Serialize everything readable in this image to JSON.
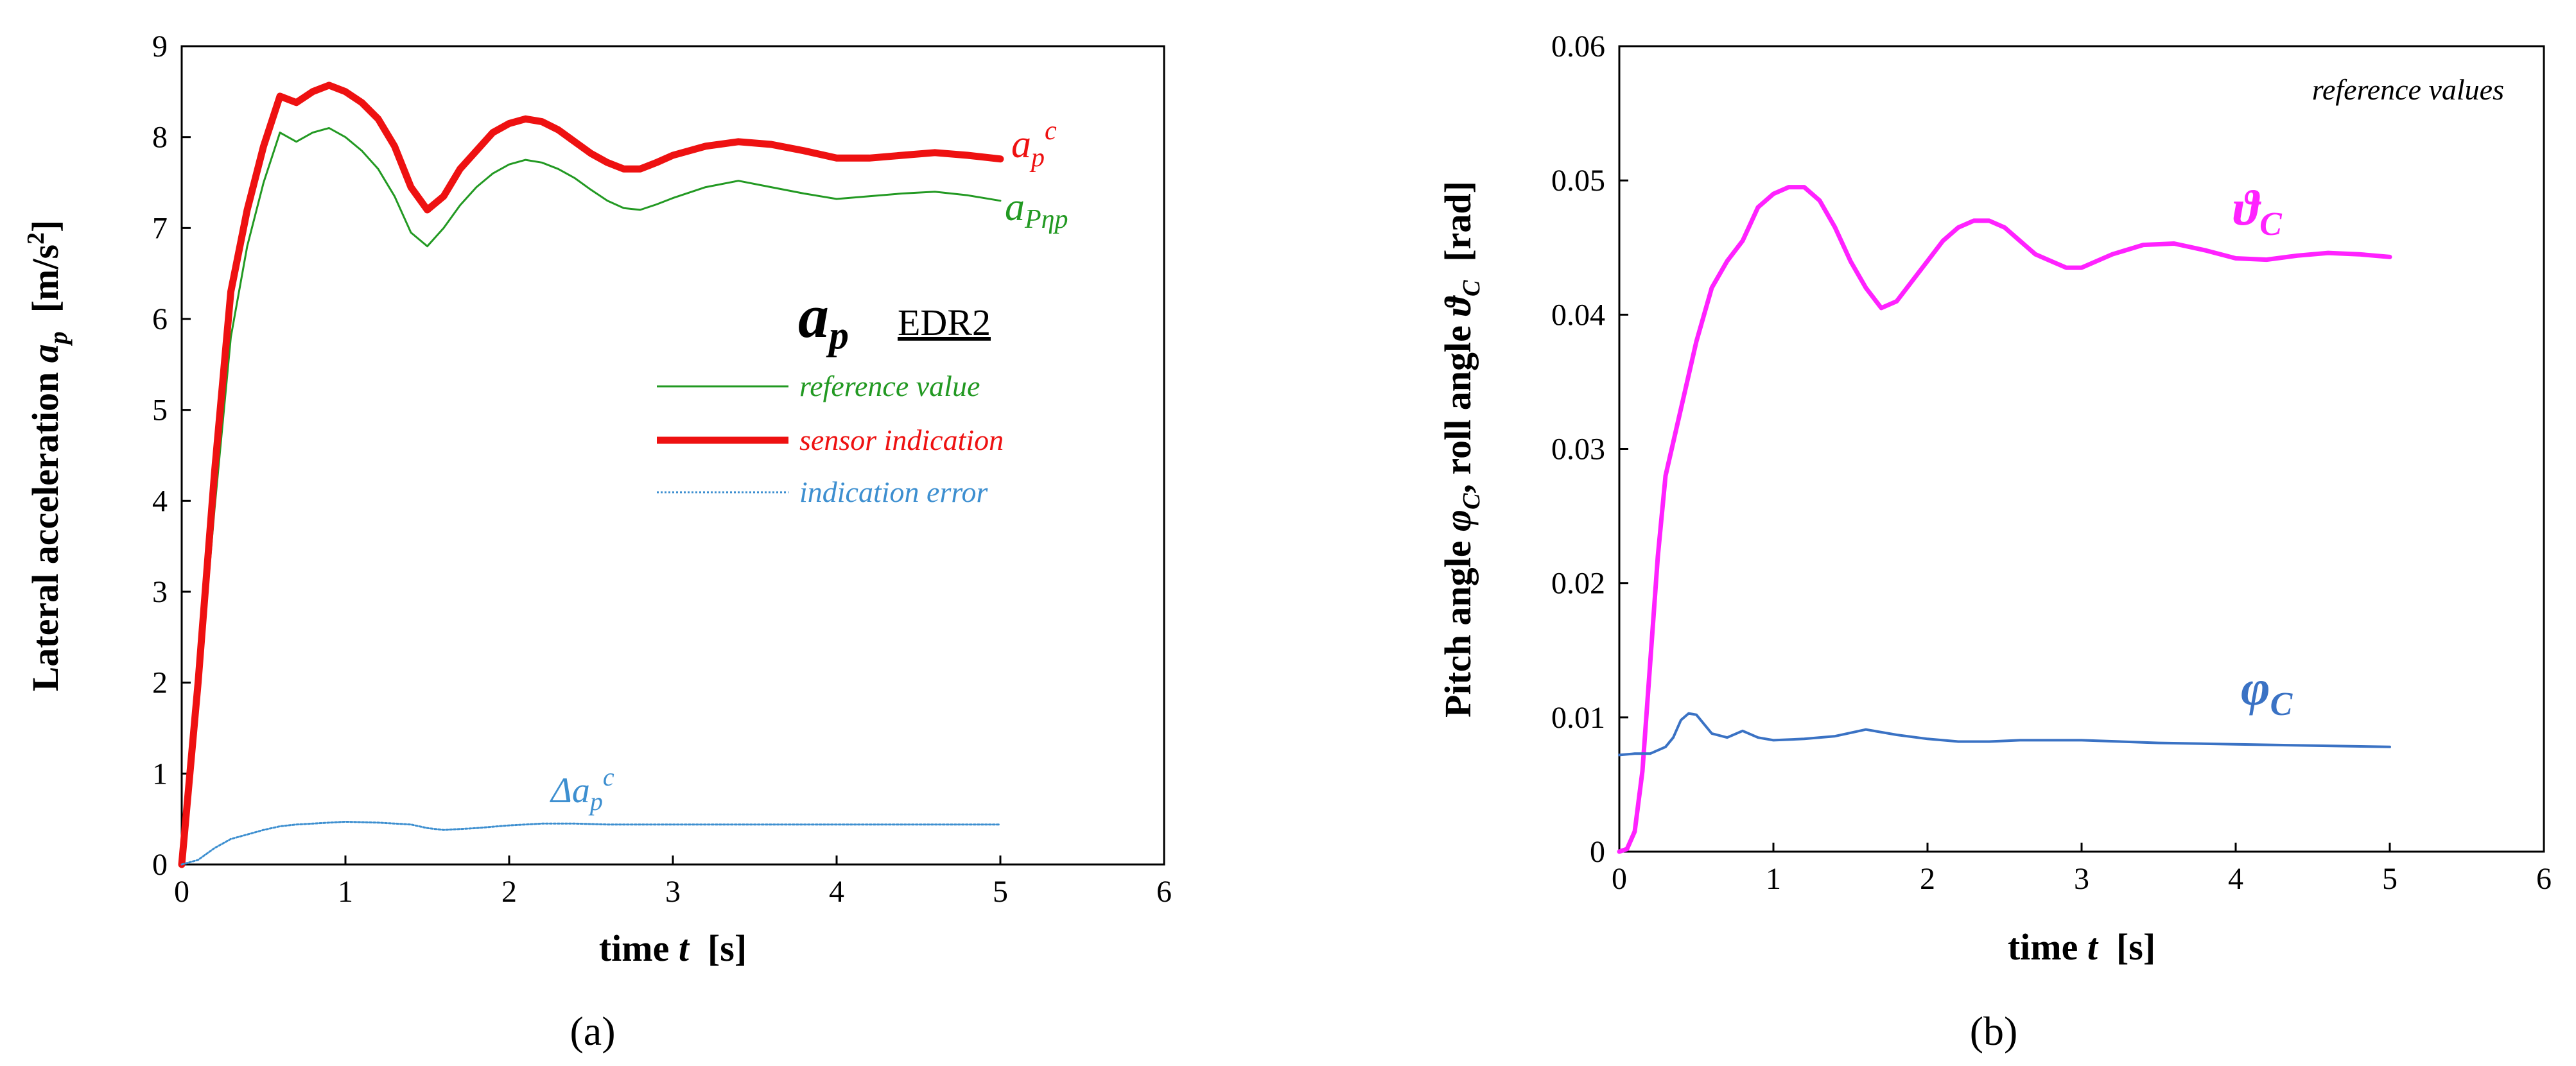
{
  "chart_data": [
    {
      "type": "line",
      "panel_label": "(a)",
      "xlim": [
        0,
        6
      ],
      "ylim": [
        0,
        9
      ],
      "x_ticks": [
        0,
        1,
        2,
        3,
        4,
        5,
        6
      ],
      "y_ticks": [
        0,
        1,
        2,
        3,
        4,
        5,
        6,
        7,
        8,
        9
      ],
      "xlabel_main": "time ",
      "xlabel_var": "t",
      "xlabel_unit": "  [s]",
      "ylabel_main": "Lateral acceleration ",
      "ylabel_var": "a",
      "ylabel_sub": "p",
      "ylabel_unit_pre": "  [m/s",
      "ylabel_unit_sup": "2",
      "ylabel_unit_post": "]",
      "legend_title_var": "a",
      "legend_title_sub": "p",
      "legend_title_code": "EDR2",
      "series": [
        {
          "name": "reference value",
          "color": "#229922",
          "stroke": "thin",
          "curve_label_main": "a",
          "curve_label_sub": "Pηp",
          "x": [
            0,
            0.1,
            0.2,
            0.3,
            0.4,
            0.5,
            0.6,
            0.7,
            0.8,
            0.9,
            1.0,
            1.1,
            1.2,
            1.3,
            1.4,
            1.5,
            1.6,
            1.7,
            1.8,
            1.9,
            2.0,
            2.1,
            2.2,
            2.3,
            2.4,
            2.5,
            2.6,
            2.7,
            2.8,
            2.9,
            3.0,
            3.2,
            3.4,
            3.6,
            3.8,
            4.0,
            4.2,
            4.4,
            4.6,
            4.8,
            5.0
          ],
          "y": [
            0,
            1.8,
            3.9,
            5.8,
            6.8,
            7.5,
            8.05,
            7.95,
            8.05,
            8.1,
            8.0,
            7.85,
            7.65,
            7.35,
            6.95,
            6.8,
            7.0,
            7.25,
            7.45,
            7.6,
            7.7,
            7.75,
            7.72,
            7.65,
            7.55,
            7.42,
            7.3,
            7.22,
            7.2,
            7.26,
            7.33,
            7.45,
            7.52,
            7.45,
            7.38,
            7.32,
            7.35,
            7.38,
            7.4,
            7.36,
            7.3
          ]
        },
        {
          "name": "sensor indication",
          "color": "#ee1111",
          "stroke": "thick",
          "curve_label_main": "a",
          "curve_label_sub": "p",
          "curve_label_sup": "c",
          "x": [
            0,
            0.1,
            0.2,
            0.3,
            0.4,
            0.5,
            0.6,
            0.7,
            0.8,
            0.9,
            1.0,
            1.1,
            1.2,
            1.3,
            1.4,
            1.5,
            1.6,
            1.7,
            1.8,
            1.9,
            2.0,
            2.1,
            2.2,
            2.3,
            2.4,
            2.5,
            2.6,
            2.7,
            2.8,
            2.9,
            3.0,
            3.2,
            3.4,
            3.6,
            3.8,
            4.0,
            4.2,
            4.4,
            4.6,
            4.8,
            5.0
          ],
          "y": [
            0,
            2.0,
            4.3,
            6.3,
            7.2,
            7.9,
            8.45,
            8.38,
            8.5,
            8.57,
            8.5,
            8.38,
            8.2,
            7.9,
            7.45,
            7.2,
            7.35,
            7.65,
            7.85,
            8.05,
            8.15,
            8.2,
            8.17,
            8.08,
            7.95,
            7.82,
            7.72,
            7.65,
            7.65,
            7.72,
            7.8,
            7.9,
            7.95,
            7.92,
            7.85,
            7.77,
            7.77,
            7.8,
            7.83,
            7.8,
            7.76
          ]
        },
        {
          "name": "indication error",
          "color": "#3d8fd0",
          "stroke": "dotted",
          "curve_label_main": "Δa",
          "curve_label_sub": "p",
          "curve_label_sup": "c",
          "x": [
            0,
            0.1,
            0.2,
            0.3,
            0.4,
            0.5,
            0.6,
            0.7,
            0.8,
            0.9,
            1.0,
            1.2,
            1.4,
            1.5,
            1.6,
            1.8,
            2.0,
            2.2,
            2.4,
            2.6,
            2.8,
            3.0,
            3.5,
            4.0,
            4.5,
            5.0
          ],
          "y": [
            0,
            0.05,
            0.18,
            0.28,
            0.33,
            0.38,
            0.42,
            0.44,
            0.45,
            0.46,
            0.47,
            0.46,
            0.44,
            0.4,
            0.38,
            0.4,
            0.43,
            0.45,
            0.45,
            0.44,
            0.44,
            0.44,
            0.44,
            0.44,
            0.44,
            0.44
          ]
        }
      ]
    },
    {
      "type": "line",
      "panel_label": "(b)",
      "xlim": [
        0,
        6
      ],
      "ylim": [
        0,
        0.06
      ],
      "x_ticks": [
        0,
        1,
        2,
        3,
        4,
        5,
        6
      ],
      "y_ticks": [
        "0",
        "0.01",
        "0.02",
        "0.03",
        "0.04",
        "0.05",
        "0.06"
      ],
      "xlabel_main": "time ",
      "xlabel_var": "t",
      "xlabel_unit": "  [s]",
      "ylabel_a": "Pitch angle ",
      "ylabel_a_var": "φ",
      "ylabel_a_sub": "C",
      "ylabel_b": ", roll angle ",
      "ylabel_b_var": "ϑ",
      "ylabel_b_sub": "C",
      "ylabel_unit": "  [rad]",
      "annotation": "reference values",
      "series": [
        {
          "color": "#ff22ff",
          "curve_label_main": "ϑ",
          "curve_label_sub": "C",
          "x": [
            0,
            0.05,
            0.1,
            0.15,
            0.2,
            0.25,
            0.3,
            0.4,
            0.5,
            0.6,
            0.7,
            0.8,
            0.9,
            1.0,
            1.1,
            1.2,
            1.3,
            1.4,
            1.5,
            1.6,
            1.7,
            1.8,
            1.9,
            2.0,
            2.1,
            2.2,
            2.3,
            2.4,
            2.5,
            2.6,
            2.7,
            2.8,
            2.9,
            3.0,
            3.2,
            3.4,
            3.6,
            3.8,
            4.0,
            4.2,
            4.4,
            4.6,
            4.8,
            5.0
          ],
          "y": [
            0,
            0.0002,
            0.0015,
            0.006,
            0.014,
            0.022,
            0.028,
            0.033,
            0.038,
            0.042,
            0.044,
            0.0455,
            0.048,
            0.049,
            0.0495,
            0.0495,
            0.0485,
            0.0465,
            0.044,
            0.042,
            0.0405,
            0.041,
            0.0425,
            0.044,
            0.0455,
            0.0465,
            0.047,
            0.047,
            0.0465,
            0.0455,
            0.0445,
            0.044,
            0.0435,
            0.0435,
            0.0445,
            0.0452,
            0.0453,
            0.0448,
            0.0442,
            0.0441,
            0.0444,
            0.0446,
            0.0445,
            0.0443
          ]
        },
        {
          "color": "#3a72c4",
          "curve_label_main": "φ",
          "curve_label_sub": "C",
          "x": [
            0,
            0.1,
            0.2,
            0.3,
            0.35,
            0.4,
            0.45,
            0.5,
            0.55,
            0.6,
            0.7,
            0.8,
            0.9,
            1.0,
            1.2,
            1.4,
            1.6,
            1.8,
            2.0,
            2.2,
            2.4,
            2.6,
            2.8,
            3.0,
            3.5,
            4.0,
            4.5,
            5.0
          ],
          "y": [
            0.0072,
            0.0073,
            0.0073,
            0.0078,
            0.0085,
            0.0098,
            0.0103,
            0.0102,
            0.0095,
            0.0088,
            0.0085,
            0.009,
            0.0085,
            0.0083,
            0.0084,
            0.0086,
            0.0091,
            0.0087,
            0.0084,
            0.0082,
            0.0082,
            0.0083,
            0.0083,
            0.0083,
            0.0081,
            0.008,
            0.0079,
            0.0078
          ]
        }
      ]
    }
  ]
}
